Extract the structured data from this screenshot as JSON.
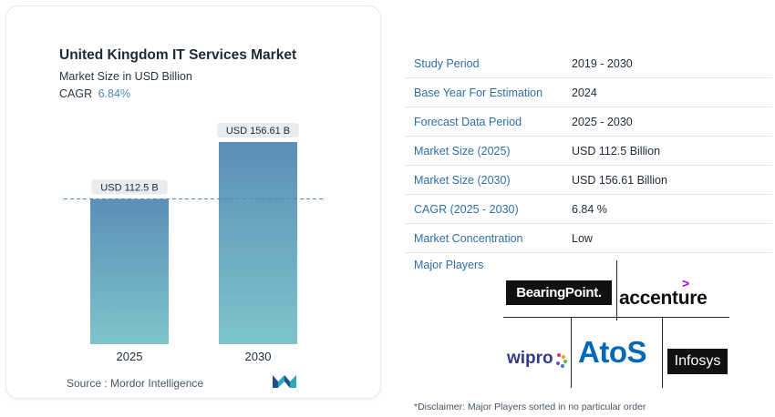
{
  "chart": {
    "title": "United Kingdom IT Services Market",
    "subtitle": "Market Size in USD Billion",
    "cagr_label": "CAGR",
    "cagr_value": "6.84%",
    "source": "Source :  Mordor Intelligence"
  },
  "chart_data": {
    "type": "bar",
    "categories": [
      "2025",
      "2030"
    ],
    "values": [
      112.5,
      156.61
    ],
    "value_labels": [
      "USD 112.5 B",
      "USD 156.61 B"
    ],
    "title": "United Kingdom IT Services Market",
    "subtitle": "Market Size in USD Billion",
    "xlabel": "",
    "ylabel": "",
    "ylim": [
      0,
      156.61
    ],
    "grid": false,
    "reference_line": "dashed line at 2025 value",
    "colors": {
      "bar_top": "#5b8fb7",
      "bar_bottom": "#7ec4cb",
      "label_bg": "#e8ecee",
      "dash": "#4b8bb4"
    }
  },
  "table": [
    {
      "key": "Study Period",
      "value": "2019 - 2030"
    },
    {
      "key": "Base Year For Estimation",
      "value": "2024"
    },
    {
      "key": "Forecast Data Period",
      "value": "2025 - 2030"
    },
    {
      "key": "Market Size (2025)",
      "value": "USD 112.5 Billion"
    },
    {
      "key": "Market Size (2030)",
      "value": "USD 156.61 Billion"
    },
    {
      "key": "CAGR (2025 - 2030)",
      "value": "6.84 %"
    },
    {
      "key": "Market Concentration",
      "value": "Low"
    }
  ],
  "players": {
    "label": "Major Players",
    "logos": [
      "BearingPoint.",
      "accenture",
      "wipro",
      "AtoS",
      "Infosys"
    ]
  },
  "disclaimer": "*Disclaimer: Major Players sorted in no particular order",
  "colors": {
    "key_text": "#2f6fa7",
    "accent": "#4b8bb4"
  }
}
